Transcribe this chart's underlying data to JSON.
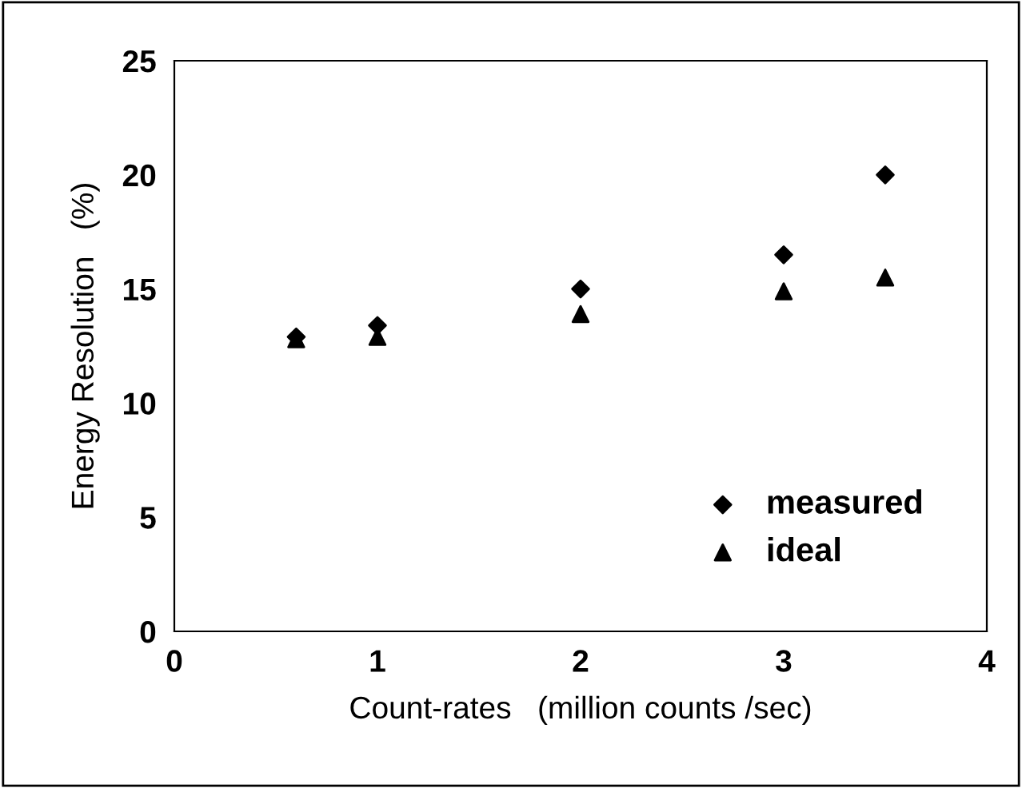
{
  "chart_data": {
    "type": "scatter",
    "xlabel": "Count-rates   (million counts /sec)",
    "ylabel": "Energy Resolution   (%)",
    "x": [
      0.6,
      1,
      2,
      3,
      3.5
    ],
    "series": [
      {
        "name": "measured",
        "color": "#000000",
        "marker": "diamond",
        "values": [
          12.9,
          13.4,
          15.0,
          16.5,
          20.0
        ]
      },
      {
        "name": "ideal",
        "color": "#000000",
        "marker": "triangle",
        "values": [
          12.8,
          12.9,
          13.9,
          14.9,
          15.5
        ]
      }
    ],
    "xlim": [
      0,
      4
    ],
    "xticks": [
      0,
      1,
      2,
      3,
      4
    ],
    "ylim": [
      0,
      25
    ],
    "yticks": [
      0,
      5,
      10,
      15,
      20,
      25
    ],
    "grid": false,
    "legend": "bottom right"
  }
}
